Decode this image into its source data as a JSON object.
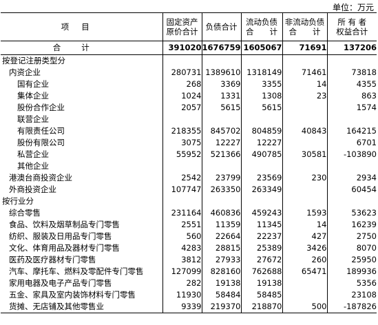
{
  "unit_label": "单位：万元",
  "headers": {
    "item": "项目",
    "col1": "固定资产原价合计",
    "col2": "负债合计",
    "col3": "流动负债合计",
    "col4": "非流动负债合计",
    "col5": "所有者权益合计"
  },
  "header_lines": {
    "col1": [
      "固定资产",
      "原价合计"
    ],
    "col2": [
      "负债合计"
    ],
    "col3": [
      "流动负债",
      "合　　计"
    ],
    "col4": [
      "非流动负债",
      "合　　计"
    ],
    "col5": [
      "所 有 者",
      "权益合计"
    ]
  },
  "total": {
    "label": "合计",
    "values": [
      "391020",
      "1676759",
      "1605067",
      "71691",
      "137206"
    ]
  },
  "rows": [
    {
      "level": 0,
      "label": "按登记注册类型分",
      "values": [
        "",
        "",
        "",
        "",
        ""
      ]
    },
    {
      "level": 1,
      "label": "内资企业",
      "values": [
        "280731",
        "1389610",
        "1318149",
        "71461",
        "73818"
      ]
    },
    {
      "level": 2,
      "label": "国有企业",
      "values": [
        "268",
        "3369",
        "3355",
        "14",
        "4355"
      ]
    },
    {
      "level": 2,
      "label": "集体企业",
      "values": [
        "1024",
        "1331",
        "1308",
        "23",
        "863"
      ]
    },
    {
      "level": 2,
      "label": "股份合作企业",
      "values": [
        "2057",
        "5615",
        "5615",
        "",
        "1574"
      ]
    },
    {
      "level": 2,
      "label": "联营企业",
      "values": [
        "",
        "",
        "",
        "",
        ""
      ]
    },
    {
      "level": 2,
      "label": "有限责任公司",
      "values": [
        "218355",
        "845702",
        "804859",
        "40843",
        "164215"
      ]
    },
    {
      "level": 2,
      "label": "股份有限公司",
      "values": [
        "3075",
        "12227",
        "12227",
        "",
        "6701"
      ]
    },
    {
      "level": 2,
      "label": "私营企业",
      "values": [
        "55952",
        "521366",
        "490785",
        "30581",
        "-103890"
      ]
    },
    {
      "level": 2,
      "label": "其他企业",
      "values": [
        "",
        "",
        "",
        "",
        ""
      ]
    },
    {
      "level": 1,
      "label": "港澳台商投资企业",
      "values": [
        "2542",
        "23799",
        "23569",
        "230",
        "2934"
      ]
    },
    {
      "level": 1,
      "label": "外商投资企业",
      "values": [
        "107747",
        "263350",
        "263349",
        "",
        "60454"
      ]
    },
    {
      "level": 0,
      "label": "按行业分",
      "values": [
        "",
        "",
        "",
        "",
        ""
      ]
    },
    {
      "level": 1,
      "label": "综合零售",
      "values": [
        "231164",
        "460836",
        "459243",
        "1593",
        "53623"
      ]
    },
    {
      "level": 1,
      "label": "食品、饮料及烟草制品专门零售",
      "values": [
        "2551",
        "11359",
        "11345",
        "14",
        "16239"
      ]
    },
    {
      "level": 1,
      "label": "纺织、服装及日用品专门零售",
      "values": [
        "560",
        "22664",
        "22237",
        "427",
        "2750"
      ]
    },
    {
      "level": 1,
      "label": "文化、体育用品及器材专门零售",
      "values": [
        "4283",
        "28815",
        "25389",
        "3426",
        "8070"
      ]
    },
    {
      "level": 1,
      "label": "医药及医疗器材专门零售",
      "values": [
        "3812",
        "27933",
        "27672",
        "260",
        "25950"
      ]
    },
    {
      "level": 1,
      "label": "汽车、摩托车、燃料及零配件专门零售",
      "values": [
        "127099",
        "828160",
        "762688",
        "65471",
        "189936"
      ]
    },
    {
      "level": 1,
      "label": "家用电器及电子产品专门零售",
      "values": [
        "282",
        "19138",
        "19138",
        "",
        "5356"
      ]
    },
    {
      "level": 1,
      "label": "五金、家具及室内装饰材料专门零售",
      "values": [
        "11930",
        "58484",
        "58485",
        "",
        "23108"
      ]
    },
    {
      "level": 1,
      "label": "货摊、无店铺及其他零售业",
      "values": [
        "9339",
        "219370",
        "218870",
        "500",
        "-187826"
      ]
    }
  ]
}
